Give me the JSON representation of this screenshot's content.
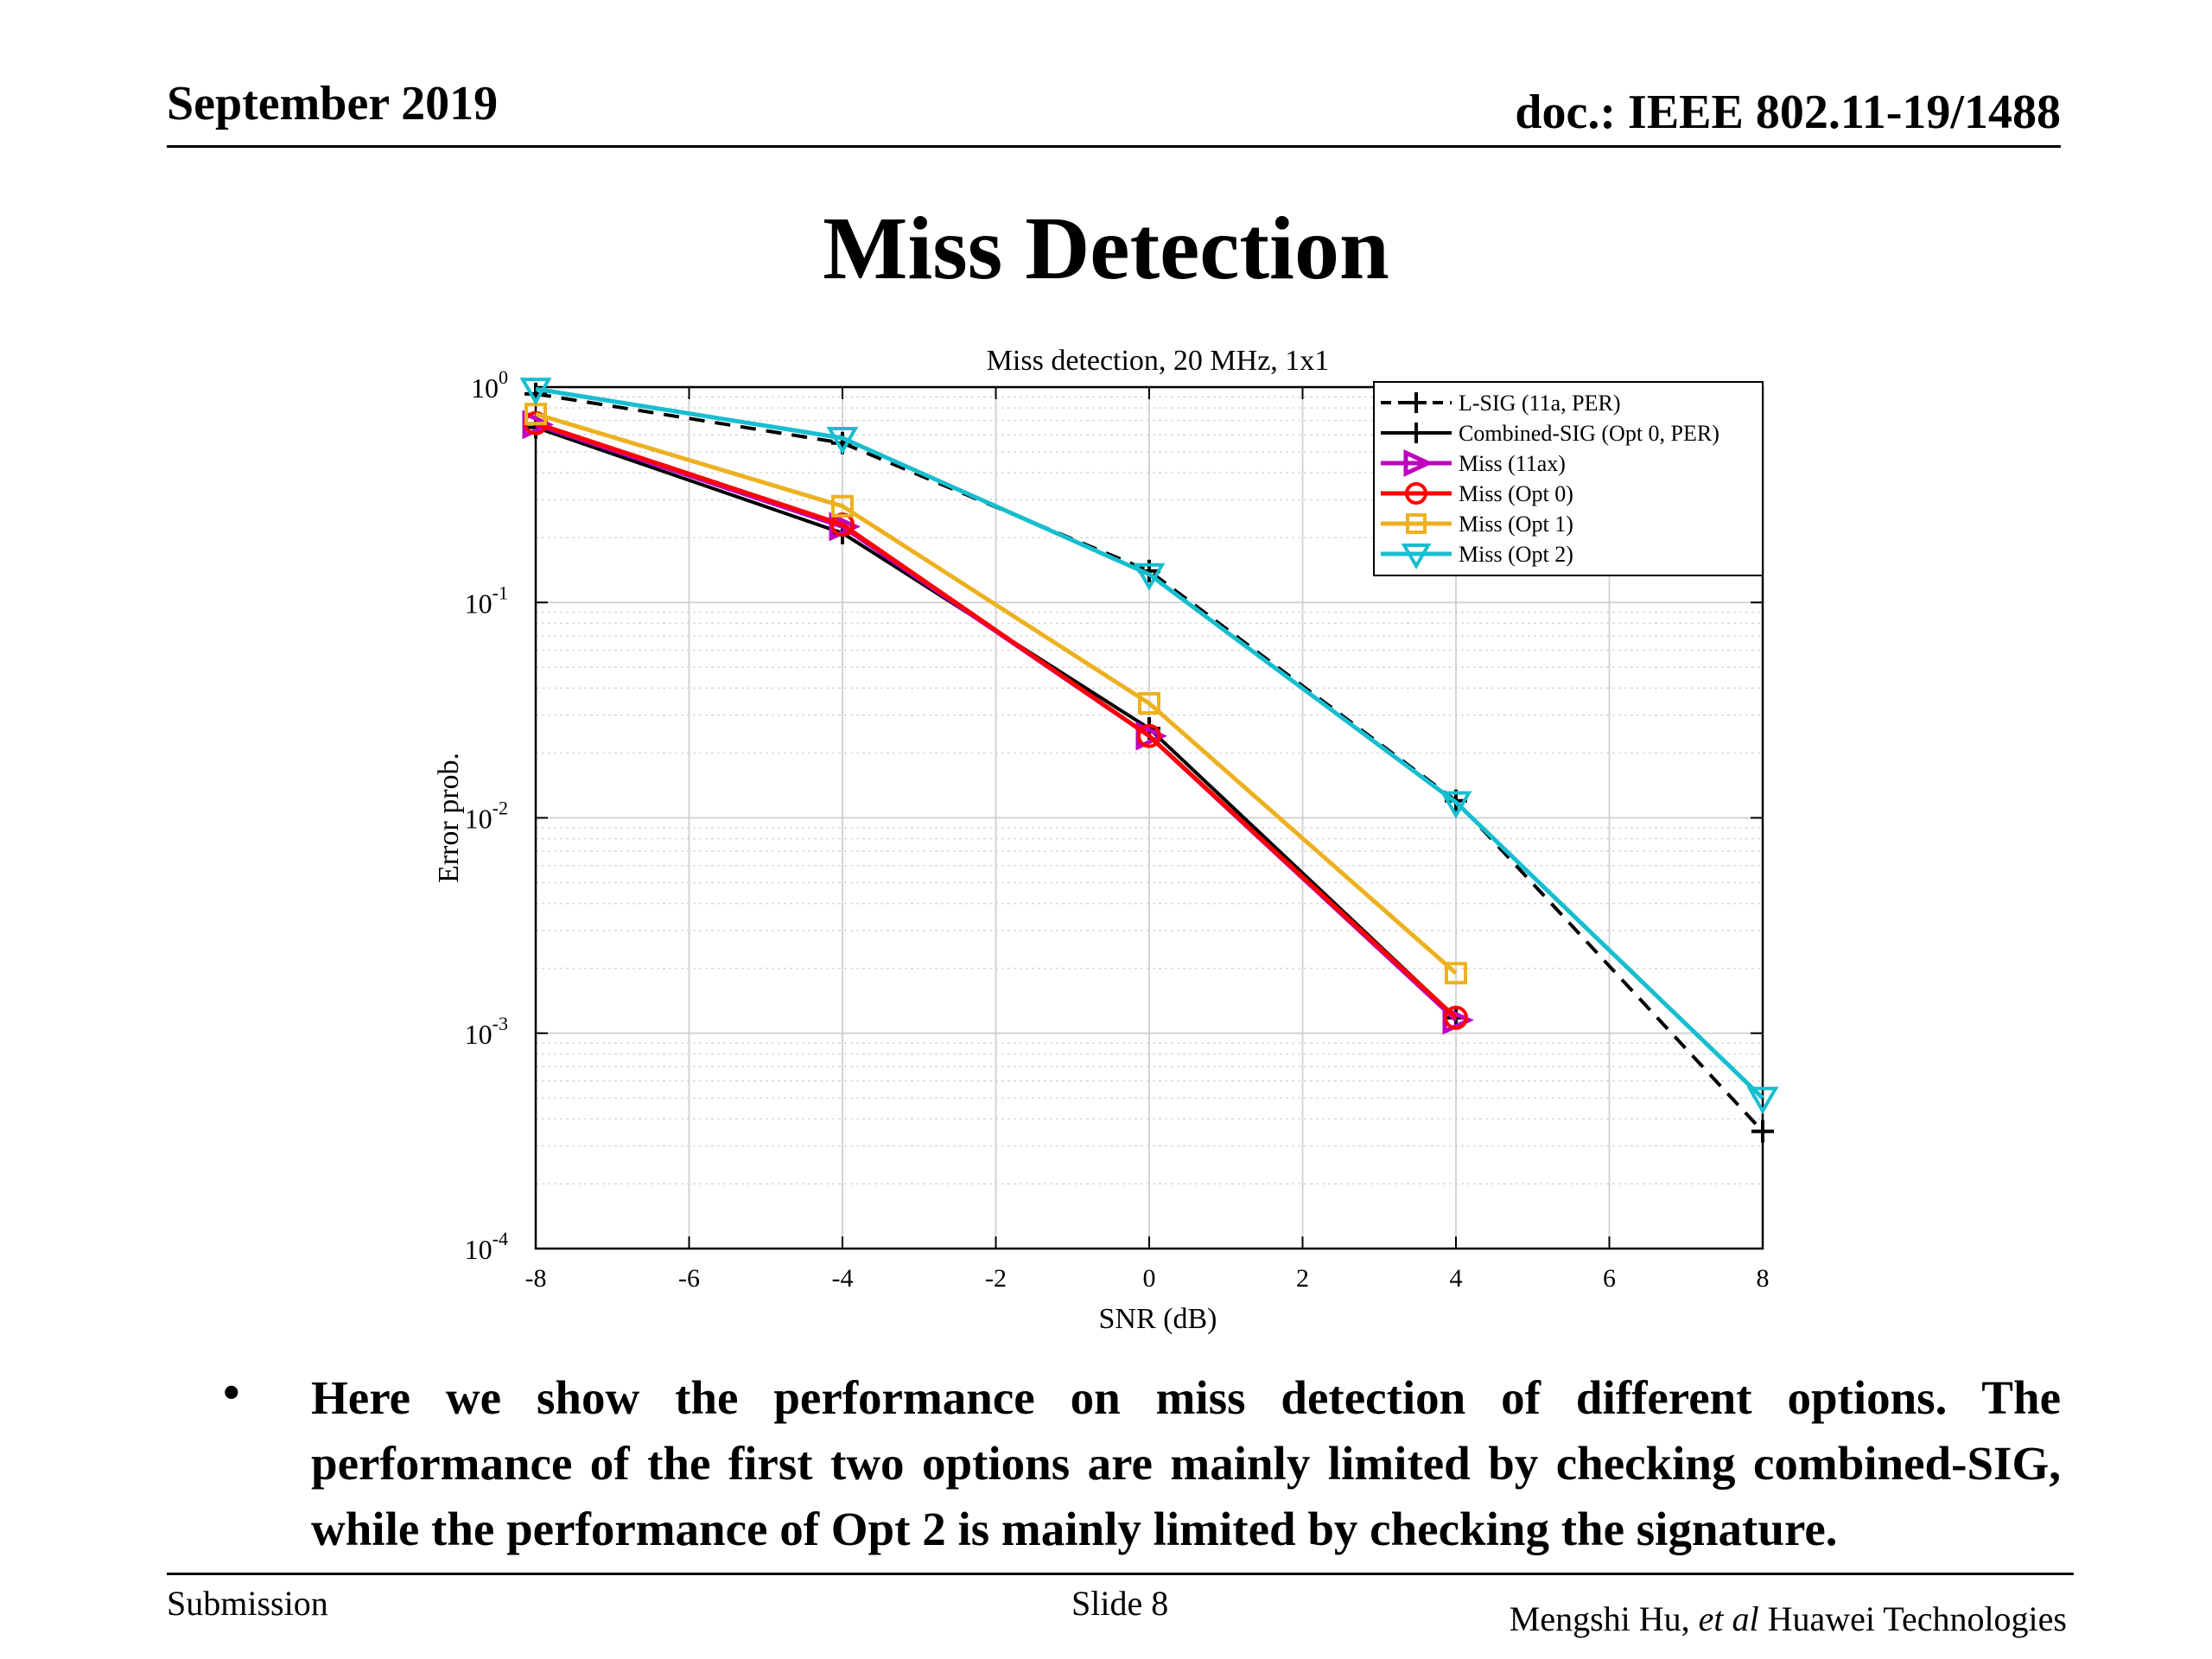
{
  "header": {
    "date": "September 2019",
    "doc": "doc.: IEEE 802.11-19/1488"
  },
  "slide_title": "Miss Detection",
  "chart_data": {
    "type": "line",
    "title": "Miss detection, 20 MHz, 1x1",
    "xlabel": "SNR (dB)",
    "ylabel": "Error prob.",
    "xlim": [
      -8,
      8
    ],
    "ylim": [
      0.0001,
      1
    ],
    "yscale": "log",
    "xticks": [
      -8,
      -6,
      -4,
      -2,
      0,
      2,
      4,
      6,
      8
    ],
    "yticks": [
      {
        "base": "10",
        "exp": "0",
        "value": 1
      },
      {
        "base": "10",
        "exp": "-1",
        "value": 0.1
      },
      {
        "base": "10",
        "exp": "-2",
        "value": 0.01
      },
      {
        "base": "10",
        "exp": "-3",
        "value": 0.001
      },
      {
        "base": "10",
        "exp": "-4",
        "value": 0.0001
      }
    ],
    "grid": true,
    "legend_position": "top-right",
    "series": [
      {
        "name": "L-SIG (11a, PER)",
        "color": "#000000",
        "dash": true,
        "marker": "plus",
        "x": [
          -8,
          -4,
          0,
          4,
          8
        ],
        "y": [
          0.93,
          0.55,
          0.14,
          0.012,
          0.00035
        ]
      },
      {
        "name": "Combined-SIG (Opt 0, PER)",
        "color": "#000000",
        "dash": false,
        "marker": "plus",
        "x": [
          -8,
          -4,
          0,
          4
        ],
        "y": [
          0.65,
          0.21,
          0.026,
          0.00118
        ]
      },
      {
        "name": "Miss (11ax)",
        "color": "#bf00bf",
        "dash": false,
        "marker": "triangle-right",
        "x": [
          -8,
          -4,
          0,
          4
        ],
        "y": [
          0.67,
          0.225,
          0.024,
          0.00115
        ]
      },
      {
        "name": "Miss (Opt 0)",
        "color": "#ff0000",
        "dash": false,
        "marker": "circle",
        "x": [
          -8,
          -4,
          0,
          4
        ],
        "y": [
          0.68,
          0.23,
          0.024,
          0.00118
        ]
      },
      {
        "name": "Miss (Opt 1)",
        "color": "#edb120",
        "dash": false,
        "marker": "square",
        "x": [
          -8,
          -4,
          0,
          4
        ],
        "y": [
          0.75,
          0.28,
          0.034,
          0.0019
        ]
      },
      {
        "name": "Miss (Opt 2)",
        "color": "#17becf",
        "dash": false,
        "marker": "triangle-down",
        "x": [
          -8,
          -4,
          0,
          4,
          8
        ],
        "y": [
          0.98,
          0.58,
          0.135,
          0.0118,
          0.0005
        ]
      }
    ]
  },
  "bullet": {
    "symbol": "•",
    "text": "Here we show the performance on miss detection of different options. The performance of the first two options are mainly limited by checking combined-SIG, while the performance of Opt 2 is mainly limited by checking the signature."
  },
  "footer": {
    "left": "Submission",
    "slide": "Slide 8",
    "author": "Mengshi Hu,",
    "etal": "et al",
    "org": "Huawei Technologies"
  }
}
